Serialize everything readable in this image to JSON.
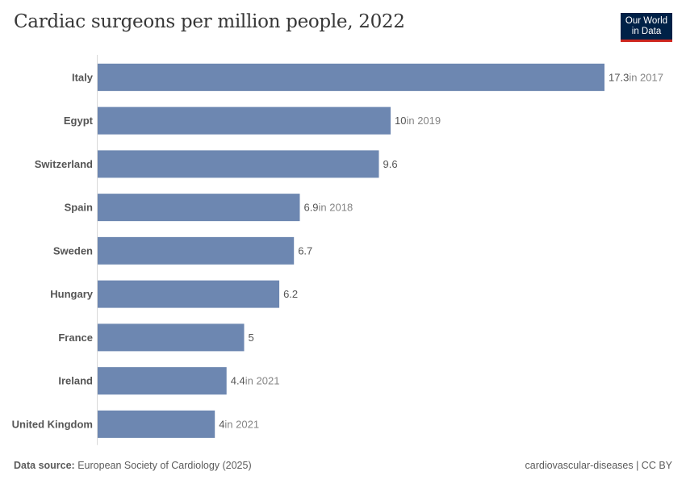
{
  "title": "Cardiac surgeons per million people, 2022",
  "logo": {
    "line1": "Our World",
    "line2": "in Data"
  },
  "footer": {
    "source_label": "Data source:",
    "source": "European Society of Cardiology (2025)",
    "right": "cardiovascular-diseases | CC BY"
  },
  "colors": {
    "bar": "#6d87b1",
    "axis": "#dadada",
    "label": "#555555",
    "year_note": "#858585"
  },
  "chart_data": {
    "type": "bar",
    "orientation": "horizontal",
    "categories": [
      "Italy",
      "Egypt",
      "Switzerland",
      "Spain",
      "Sweden",
      "Hungary",
      "France",
      "Ireland",
      "United Kingdom"
    ],
    "values": [
      17.3,
      10,
      9.6,
      6.9,
      6.7,
      6.2,
      5,
      4.4,
      4
    ],
    "value_labels": [
      "17.3",
      "10",
      "9.6",
      "6.9",
      "6.7",
      "6.2",
      "5",
      "4.4",
      "4"
    ],
    "year_notes": [
      "in 2017",
      "in 2019",
      "",
      "in 2018",
      "",
      "",
      "",
      "in 2021",
      "in 2021"
    ],
    "xlim": [
      0,
      17.3
    ],
    "grid": false
  }
}
